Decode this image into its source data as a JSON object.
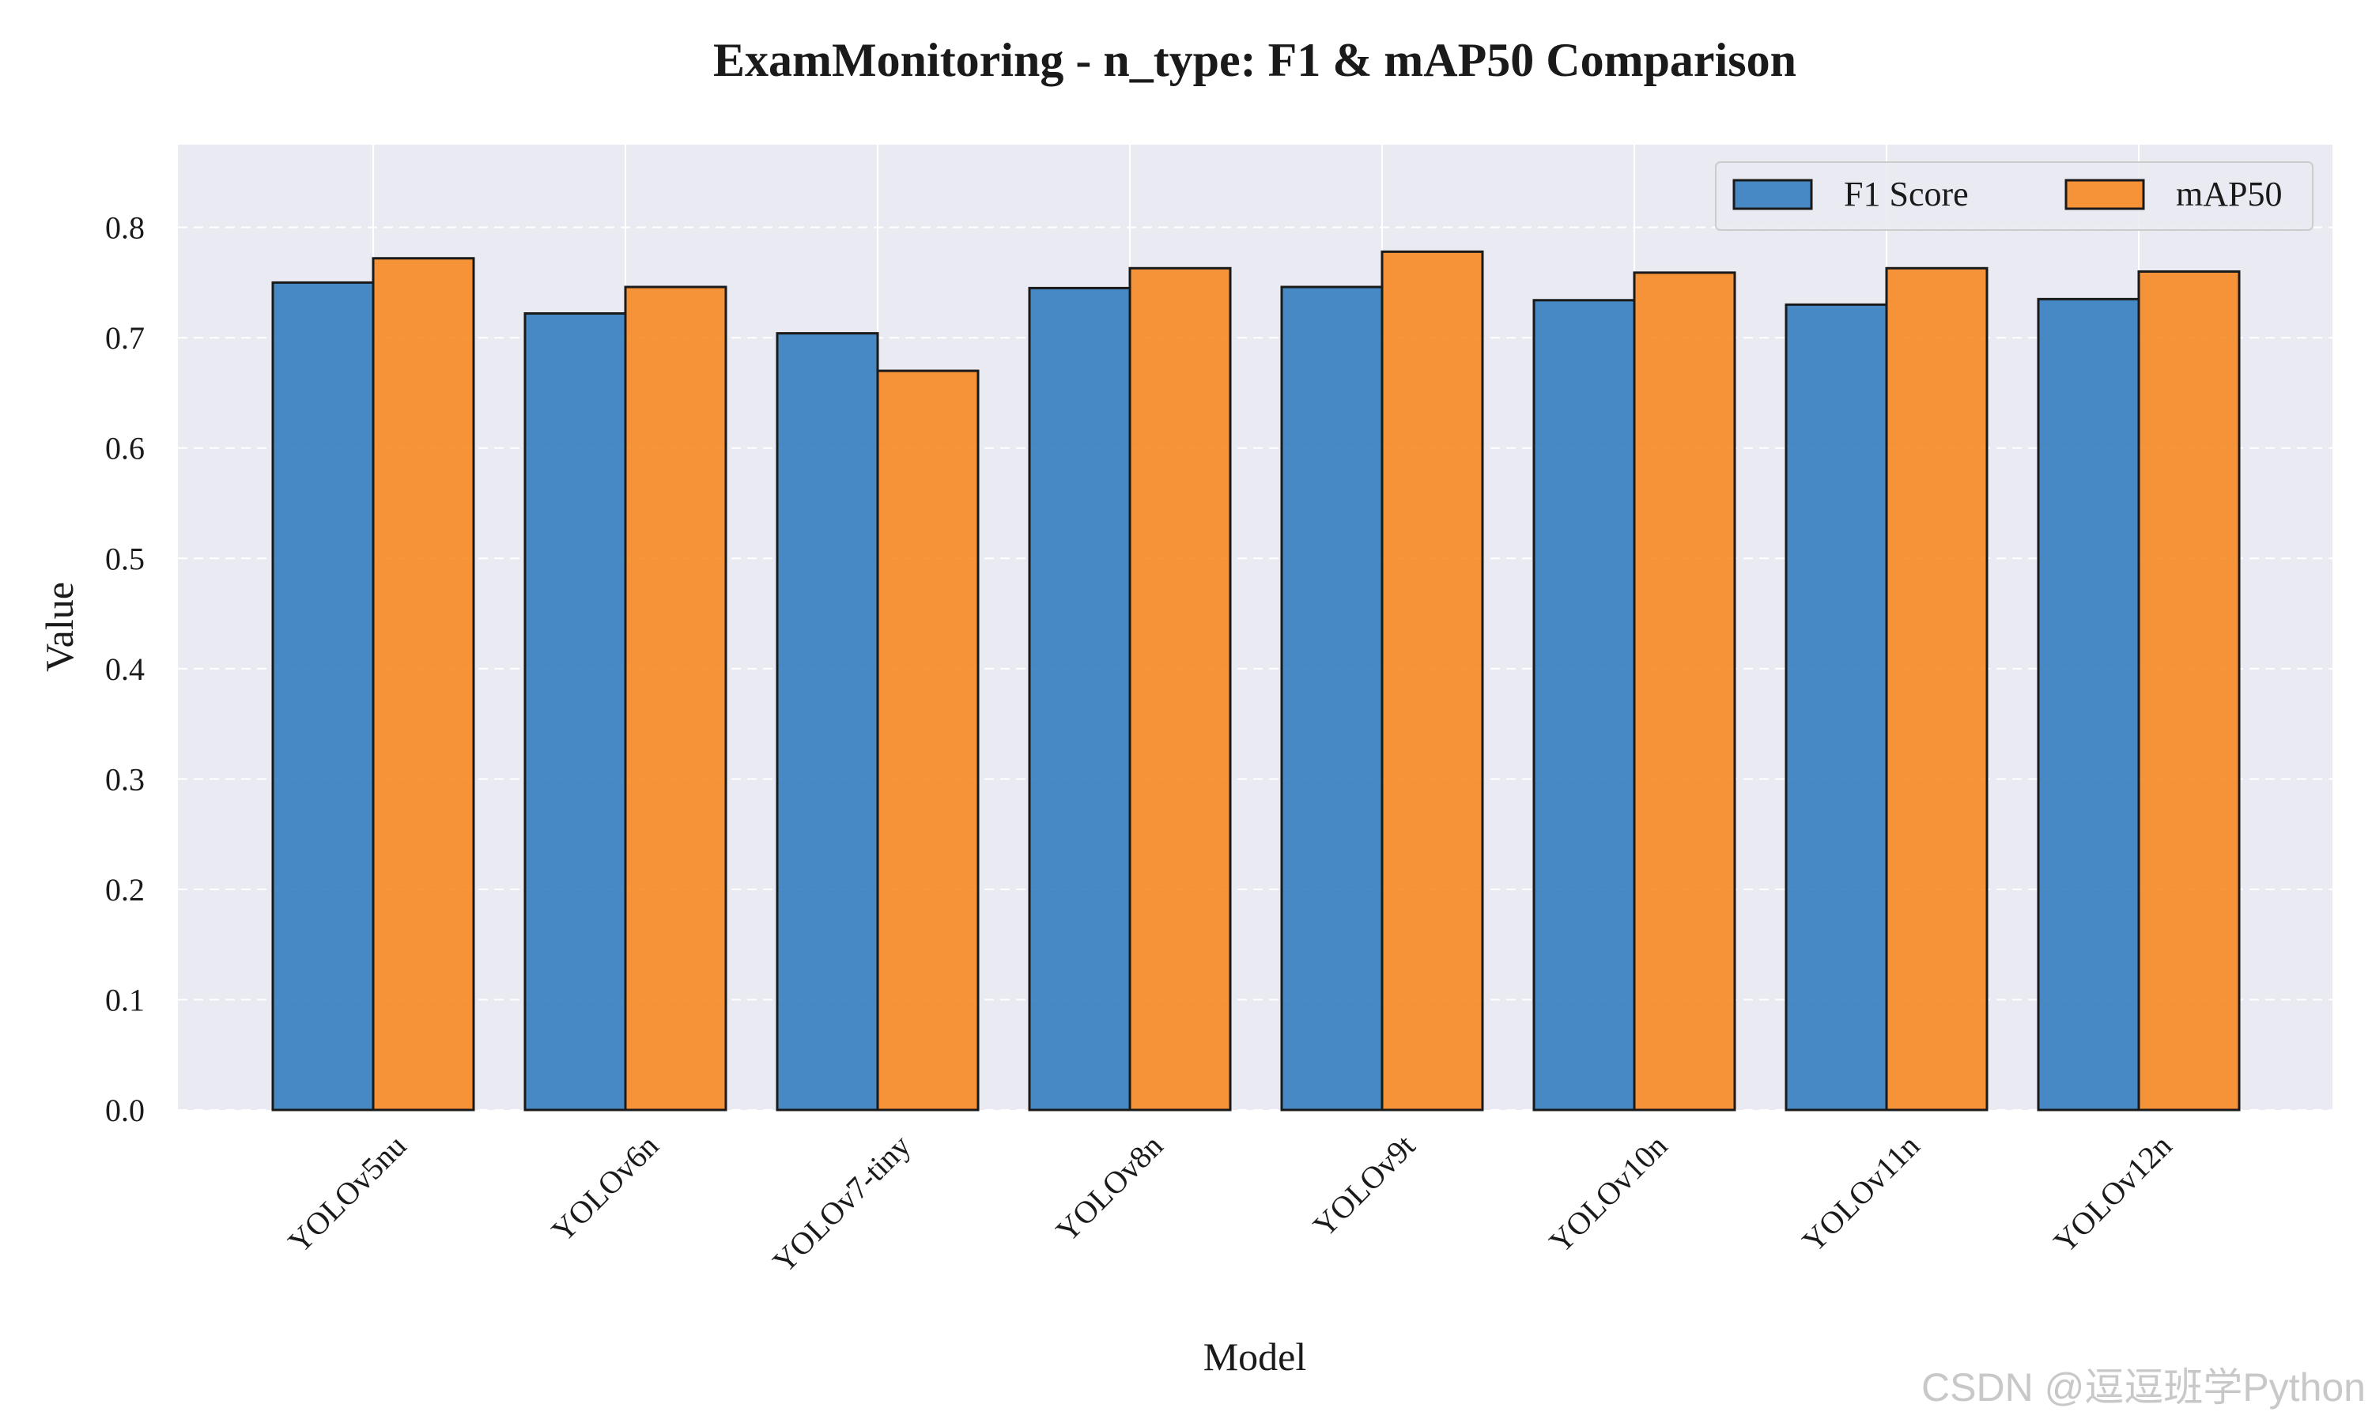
{
  "chart_data": {
    "type": "bar",
    "title": "ExamMonitoring - n_type: F1 & mAP50 Comparison",
    "xlabel": "Model",
    "ylabel": "Value",
    "ylim": [
      0,
      0.875
    ],
    "yticks": [
      "0.0",
      "0.1",
      "0.2",
      "0.3",
      "0.4",
      "0.5",
      "0.6",
      "0.7",
      "0.8"
    ],
    "categories": [
      "YOLOv5nu",
      "YOLOv6n",
      "YOLOv7-tiny",
      "YOLOv8n",
      "YOLOv9t",
      "YOLOv10n",
      "YOLOv11n",
      "YOLOv12n"
    ],
    "series": [
      {
        "name": "F1 Score",
        "color": "#2f7bbd",
        "values": [
          0.75,
          0.722,
          0.704,
          0.745,
          0.746,
          0.734,
          0.73,
          0.735
        ]
      },
      {
        "name": "mAP50",
        "color": "#f7861e",
        "values": [
          0.772,
          0.746,
          0.67,
          0.763,
          0.778,
          0.759,
          0.763,
          0.76
        ]
      }
    ],
    "legend_position": "top-right",
    "grid": true
  },
  "watermark": "CSDN @逗逗班学Python",
  "colors": {
    "plot_bg": "#eaeaf2",
    "grid": "#ffffff",
    "edge": "#1a1a1a"
  }
}
